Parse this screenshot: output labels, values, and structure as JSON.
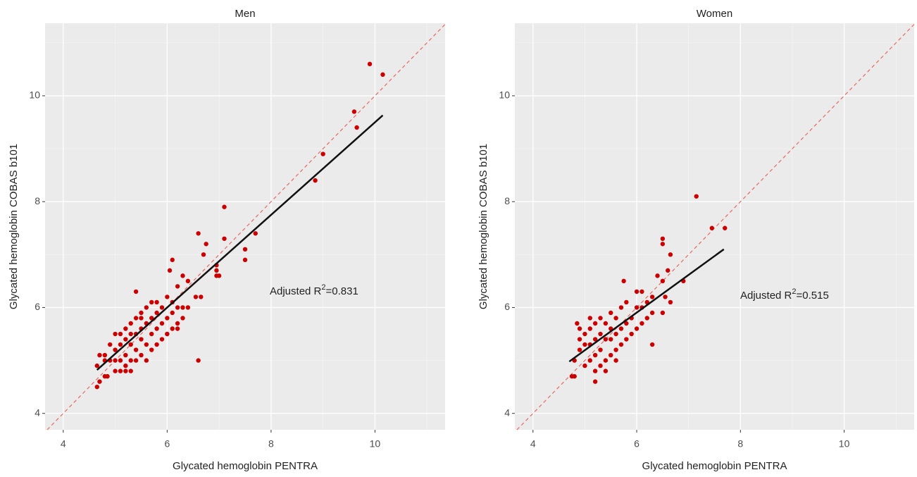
{
  "chart_data": [
    {
      "type": "scatter",
      "title": "Men",
      "x_label": "Glycated hemoglobin PENTRA",
      "y_label": "Glycated hemoglobin COBAS b101",
      "xlim": [
        3.65,
        11.35
      ],
      "ylim": [
        3.69,
        11.37
      ],
      "xticks": [
        4,
        6,
        8,
        10
      ],
      "yticks": [
        4,
        6,
        8,
        10
      ],
      "grid": true,
      "color": "#cc0000",
      "identity_line": true,
      "identity_color": "#e8685f",
      "x": [
        4.65,
        4.7,
        4.8,
        4.65,
        4.7,
        4.8,
        4.85,
        5.0,
        5.1,
        5.2,
        5.3,
        9.9,
        10.15,
        9.6,
        9.65,
        9.0,
        8.85,
        7.1,
        7.7,
        7.1,
        6.6,
        6.75,
        6.7,
        7.5,
        7.5,
        6.95,
        6.95,
        6.95,
        7.0,
        6.6,
        6.55,
        6.65,
        6.1,
        6.05,
        6.3,
        6.4,
        5.4,
        4.9,
        4.9,
        5.0,
        5.0,
        5.1,
        5.1,
        5.1,
        5.2,
        5.2,
        5.2,
        5.3,
        5.3,
        5.3,
        5.4,
        5.4,
        5.4,
        5.5,
        5.5,
        5.5,
        5.5,
        5.6,
        5.6,
        5.6,
        5.6,
        5.7,
        5.7,
        5.7,
        5.7,
        5.8,
        5.8,
        5.8,
        5.8,
        5.9,
        5.9,
        5.9,
        6.0,
        6.0,
        6.0,
        6.1,
        6.1,
        6.1,
        6.2,
        6.2,
        6.2,
        6.3,
        6.3,
        6.4,
        6.2,
        6.0,
        5.0,
        5.2,
        5.4,
        4.8,
        5.5,
        5.3
      ],
      "values": [
        4.5,
        4.6,
        4.7,
        4.9,
        5.1,
        5.0,
        4.7,
        4.8,
        4.8,
        4.8,
        4.8,
        10.6,
        10.4,
        9.7,
        9.4,
        8.9,
        8.4,
        7.9,
        7.4,
        7.3,
        7.4,
        7.2,
        7.0,
        7.1,
        6.9,
        6.8,
        6.7,
        6.6,
        6.6,
        5.0,
        6.2,
        6.2,
        6.9,
        6.7,
        6.6,
        6.5,
        6.3,
        5.0,
        5.3,
        5.2,
        5.5,
        5.0,
        5.3,
        5.5,
        5.1,
        5.4,
        5.6,
        5.0,
        5.3,
        5.7,
        5.2,
        5.5,
        5.8,
        5.1,
        5.4,
        5.6,
        5.9,
        5.0,
        5.3,
        5.7,
        6.0,
        5.2,
        5.5,
        5.8,
        6.1,
        5.3,
        5.6,
        5.9,
        6.1,
        5.4,
        5.7,
        6.0,
        5.5,
        5.8,
        6.2,
        5.6,
        5.9,
        6.1,
        5.7,
        6.0,
        6.4,
        5.8,
        6.0,
        6.0,
        5.6,
        5.5,
        5.0,
        4.9,
        5.0,
        5.1,
        5.8,
        5.5
      ],
      "fit": {
        "x": [
          4.65,
          10.15
        ],
        "values": [
          4.82,
          9.63
        ]
      },
      "annotation": [
        "Adjusted R",
        "2",
        "=0.831"
      ]
    },
    {
      "type": "scatter",
      "title": "Women",
      "x_label": "Glycated hemoglobin PENTRA",
      "y_label": "Glycated hemoglobin COBAS b101",
      "xlim": [
        3.65,
        11.35
      ],
      "ylim": [
        3.69,
        11.37
      ],
      "xticks": [
        4,
        6,
        8,
        10
      ],
      "yticks": [
        4,
        6,
        8,
        10
      ],
      "grid": true,
      "color": "#cc0000",
      "identity_line": true,
      "identity_color": "#e8685f",
      "x": [
        7.15,
        7.45,
        7.7,
        6.5,
        6.5,
        6.65,
        6.6,
        6.9,
        6.5,
        6.4,
        6.55,
        6.65,
        6.5,
        6.3,
        5.2,
        4.75,
        4.8,
        4.85,
        5.75,
        6.0,
        6.1,
        4.8,
        4.9,
        4.9,
        5.0,
        5.0,
        5.0,
        5.1,
        5.1,
        5.1,
        5.2,
        5.2,
        5.2,
        5.3,
        5.3,
        5.3,
        5.3,
        5.4,
        5.4,
        5.4,
        5.5,
        5.5,
        5.5,
        5.5,
        5.6,
        5.6,
        5.6,
        5.7,
        5.7,
        5.7,
        5.8,
        5.8,
        5.8,
        5.9,
        5.9,
        6.0,
        6.0,
        6.1,
        6.1,
        6.2,
        6.2,
        6.3,
        6.3,
        5.2,
        5.4,
        5.6,
        4.9,
        5.1
      ],
      "values": [
        8.1,
        7.5,
        7.5,
        7.3,
        7.2,
        7.0,
        6.7,
        6.5,
        6.5,
        6.6,
        6.2,
        6.1,
        5.9,
        5.3,
        4.6,
        4.7,
        4.7,
        5.7,
        6.5,
        6.3,
        6.3,
        5.0,
        5.2,
        5.4,
        4.9,
        5.3,
        5.5,
        5.0,
        5.3,
        5.6,
        5.1,
        5.4,
        5.7,
        4.9,
        5.2,
        5.5,
        5.8,
        5.0,
        5.4,
        5.7,
        5.1,
        5.4,
        5.6,
        5.9,
        5.2,
        5.5,
        5.8,
        5.3,
        5.6,
        6.0,
        5.4,
        5.7,
        6.1,
        5.5,
        5.8,
        5.6,
        6.0,
        5.7,
        6.0,
        5.8,
        6.1,
        5.9,
        6.2,
        4.8,
        4.8,
        5.0,
        5.6,
        5.8
      ],
      "fit": {
        "x": [
          4.7,
          7.68
        ],
        "values": [
          4.98,
          7.1
        ]
      },
      "annotation": [
        "Adjusted R",
        "2",
        "=0.515"
      ]
    }
  ]
}
